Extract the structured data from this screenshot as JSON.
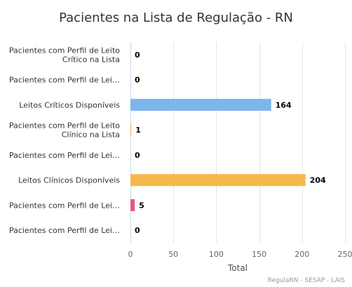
{
  "chart_data": {
    "type": "bar",
    "orientation": "horizontal",
    "title": "Pacientes na Lista de Regulação - RN",
    "xlabel": "Total",
    "ylabel": "",
    "xlim": [
      0,
      250
    ],
    "x_ticks": [
      0,
      50,
      100,
      150,
      200,
      250
    ],
    "grid": true,
    "legend": "none",
    "data_labels": true,
    "categories": [
      {
        "label": "Pacientes com Perfil de Leito Crítico na Lista",
        "lines": [
          "Pacientes com Perfil de Leito",
          "Crítico na Lista"
        ]
      },
      {
        "label": "Pacientes com Perfil de Lei…",
        "lines": [
          "Pacientes com Perfil de Lei…"
        ]
      },
      {
        "label": "Leitos Críticos Disponíveis",
        "lines": [
          "Leitos Críticos Disponíveis"
        ]
      },
      {
        "label": "Pacientes com Perfil de Leito Clínico na Lista",
        "lines": [
          "Pacientes com Perfil de Leito",
          "Clínico na Lista"
        ]
      },
      {
        "label": "Pacientes com Perfil de Lei…",
        "lines": [
          "Pacientes com Perfil de Lei…"
        ]
      },
      {
        "label": "Leitos Clínicos Disponíveis",
        "lines": [
          "Leitos Clínicos Disponíveis"
        ]
      },
      {
        "label": "Pacientes com Perfil de Lei…",
        "lines": [
          "Pacientes com Perfil de Lei…"
        ]
      },
      {
        "label": "Pacientes com Perfil de Lei…",
        "lines": [
          "Pacientes com Perfil de Lei…"
        ]
      }
    ],
    "values": [
      0,
      0,
      164,
      1,
      0,
      204,
      5,
      0
    ],
    "bar_colors": [
      "#7cb5ec",
      "#7cb5ec",
      "#7cb5ec",
      "#f7b84b",
      "#f7b84b",
      "#f7b84b",
      "#e8577d",
      "#e8577d"
    ]
  },
  "credits": "RegulaRN - SESAP - LAIS"
}
